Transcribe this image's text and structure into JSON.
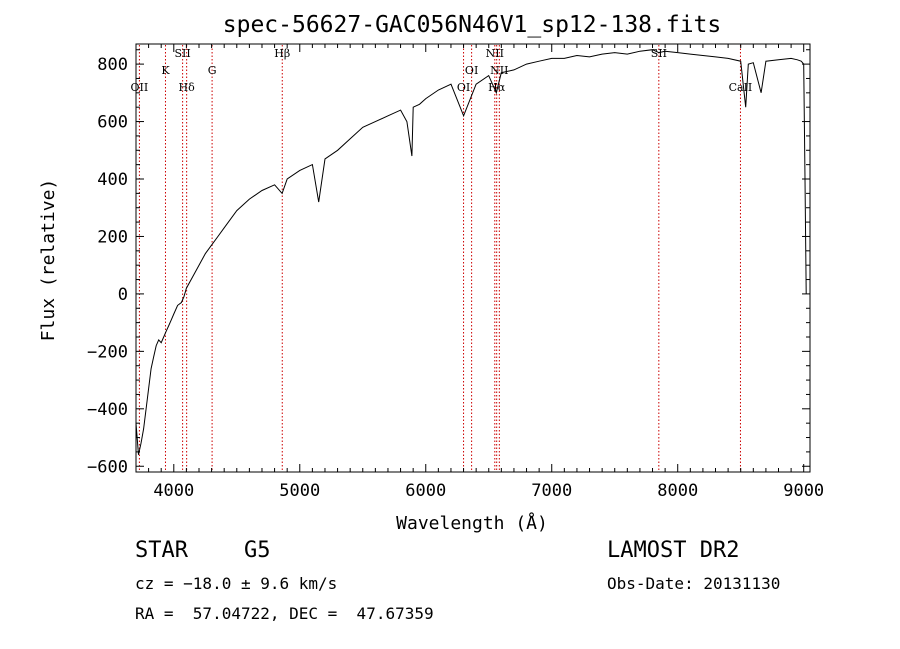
{
  "chart_data": {
    "type": "line",
    "title": "spec-56627-GAC056N46V1_sp12-138.fits",
    "xlabel": "Wavelength (Å)",
    "ylabel": "Flux (relative)",
    "xlim": [
      3700,
      9050
    ],
    "ylim": [
      -620,
      870
    ],
    "x_ticks": [
      4000,
      5000,
      6000,
      7000,
      8000,
      9000
    ],
    "y_ticks": [
      -600,
      -400,
      -200,
      0,
      200,
      400,
      600,
      800
    ],
    "x_tick_labels": [
      "4000",
      "5000",
      "6000",
      "7000",
      "8000",
      "9000"
    ],
    "y_tick_labels": [
      "−600",
      "−400",
      "−200",
      "0",
      "200",
      "400",
      "600",
      "800"
    ],
    "grid": false,
    "series": [
      {
        "color": "#000000",
        "x": [
          3700,
          3720,
          3740,
          3760,
          3780,
          3800,
          3820,
          3840,
          3860,
          3880,
          3900,
          3920,
          3940,
          3960,
          3980,
          4000,
          4030,
          4060,
          4080,
          4100,
          4150,
          4200,
          4250,
          4300,
          4350,
          4400,
          4500,
          4600,
          4700,
          4800,
          4860,
          4900,
          5000,
          5100,
          5150,
          5200,
          5300,
          5400,
          5500,
          5600,
          5700,
          5800,
          5850,
          5890,
          5900,
          5950,
          6000,
          6100,
          6200,
          6300,
          6400,
          6500,
          6560,
          6600,
          6700,
          6800,
          6900,
          7000,
          7100,
          7200,
          7300,
          7400,
          7500,
          7600,
          7700,
          7800,
          7850,
          7900,
          8000,
          8100,
          8200,
          8300,
          8400,
          8500,
          8540,
          8560,
          8600,
          8662,
          8700,
          8800,
          8900,
          8950,
          8980,
          9000,
          9010,
          9020
        ],
        "y": [
          -450,
          -560,
          -520,
          -470,
          -400,
          -330,
          -260,
          -220,
          -180,
          -160,
          -170,
          -150,
          -130,
          -110,
          -90,
          -70,
          -40,
          -30,
          -10,
          20,
          60,
          100,
          140,
          170,
          200,
          230,
          290,
          330,
          360,
          380,
          350,
          400,
          430,
          450,
          320,
          470,
          500,
          540,
          580,
          600,
          620,
          640,
          600,
          480,
          650,
          660,
          680,
          710,
          730,
          620,
          730,
          760,
          700,
          770,
          780,
          800,
          810,
          820,
          820,
          830,
          825,
          835,
          840,
          835,
          845,
          850,
          840,
          845,
          840,
          835,
          830,
          825,
          820,
          810,
          650,
          800,
          805,
          700,
          810,
          815,
          820,
          815,
          810,
          800,
          400,
          0
        ]
      }
    ],
    "line_markers": [
      {
        "label": "OII",
        "x": 3727
      },
      {
        "label": "K",
        "x": 3934
      },
      {
        "label": "SII",
        "x": 4070
      },
      {
        "label": "Hδ",
        "x": 4102
      },
      {
        "label": "G",
        "x": 4304
      },
      {
        "label": "Hβ",
        "x": 4861
      },
      {
        "label": "OI",
        "x": 6300
      },
      {
        "label": "OI",
        "x": 6364
      },
      {
        "label": "NII",
        "x": 6548
      },
      {
        "label": "Hα",
        "x": 6563
      },
      {
        "label": "NII",
        "x": 6584
      },
      {
        "label": "SII",
        "x": 7850
      },
      {
        "label": "CaII",
        "x": 8498
      }
    ],
    "marker_color": "#cc0000"
  },
  "footer": {
    "object_class": "STAR",
    "subclass": "G5",
    "survey": "LAMOST DR2",
    "redshift": "cz = −18.0 ± 9.6 km/s",
    "obs_date": "Obs-Date: 20131130",
    "coords": "RA =  57.04722, DEC =  47.67359"
  }
}
